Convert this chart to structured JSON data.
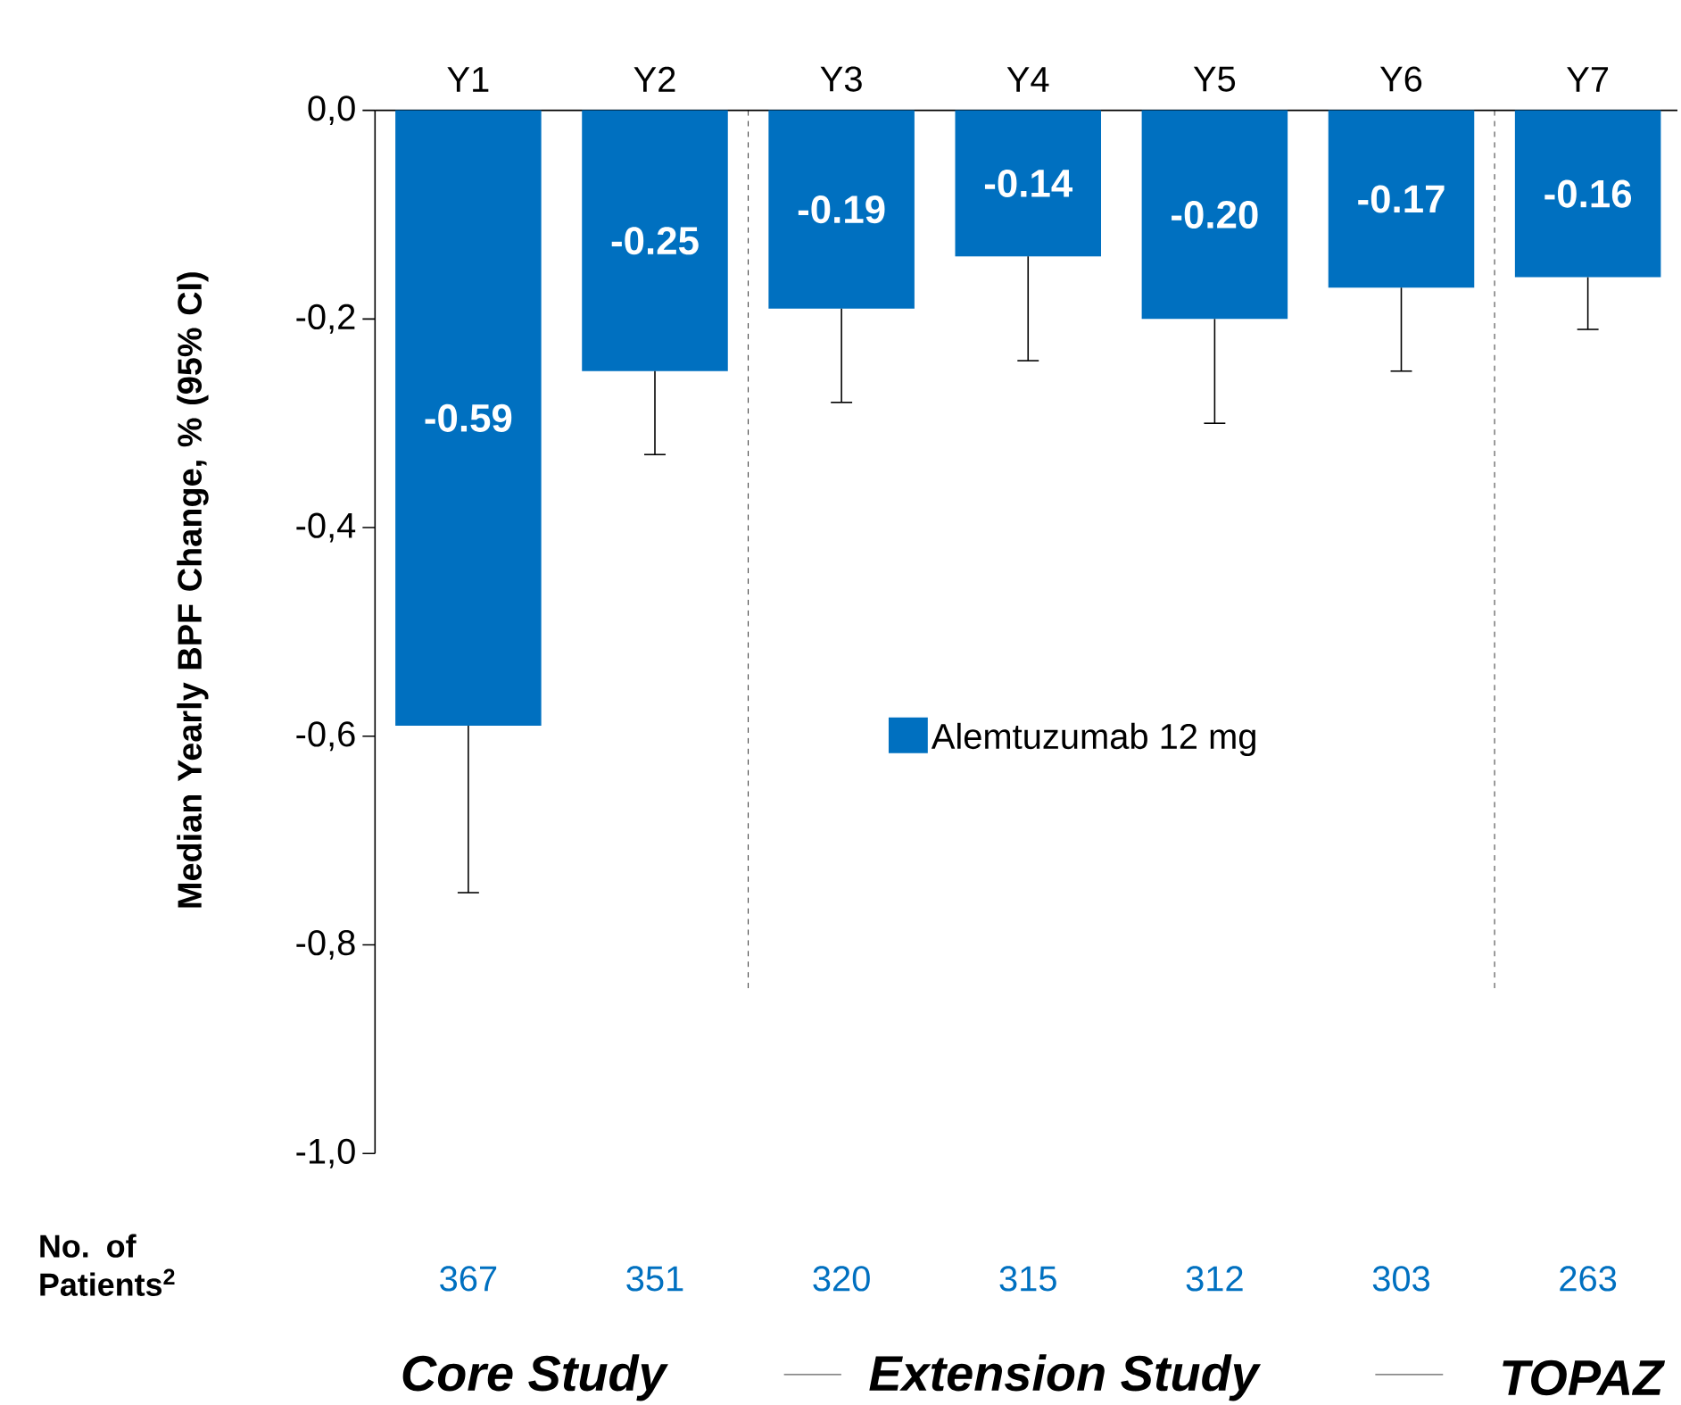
{
  "chart_data": {
    "type": "bar",
    "ylabel": "Median Yearly BPF Change, % (95% CI)",
    "categories": [
      "Y1",
      "Y2",
      "Y3",
      "Y4",
      "Y5",
      "Y6",
      "Y7"
    ],
    "series": [
      {
        "name": "Alemtuzumab 12 mg",
        "color": "#0070c0",
        "values": [
          -0.59,
          -0.25,
          -0.19,
          -0.14,
          -0.2,
          -0.17,
          -0.16
        ],
        "errors": [
          [
            -0.75,
            -0.59
          ],
          [
            -0.33,
            -0.25
          ],
          [
            -0.28,
            -0.19
          ],
          [
            -0.24,
            -0.14
          ],
          [
            -0.3,
            -0.2
          ],
          [
            -0.25,
            -0.17
          ],
          [
            -0.21,
            -0.16
          ]
        ],
        "value_labels": [
          "-0.59",
          "-0.25",
          "-0.19",
          "-0.14",
          "-0.20",
          "-0.17",
          "-0.16"
        ]
      }
    ],
    "ylim": [
      -1.0,
      0
    ],
    "yticks": [
      {
        "value": 0,
        "label": "0,0"
      },
      {
        "value": -0.2,
        "label": "-0,2"
      },
      {
        "value": -0.4,
        "label": "-0,4"
      },
      {
        "value": -0.6,
        "label": "-0,6"
      },
      {
        "value": -0.8,
        "label": "-0,8"
      },
      {
        "value": -1.0,
        "label": "-1,0"
      }
    ],
    "legend": "center",
    "annotations": [
      "No. of Patients$^{2}$",
      "367",
      "351",
      "320",
      "315",
      "312",
      "303",
      "263",
      "Core Study",
      "Extension Study",
      "TOPAZ"
    ]
  }
}
